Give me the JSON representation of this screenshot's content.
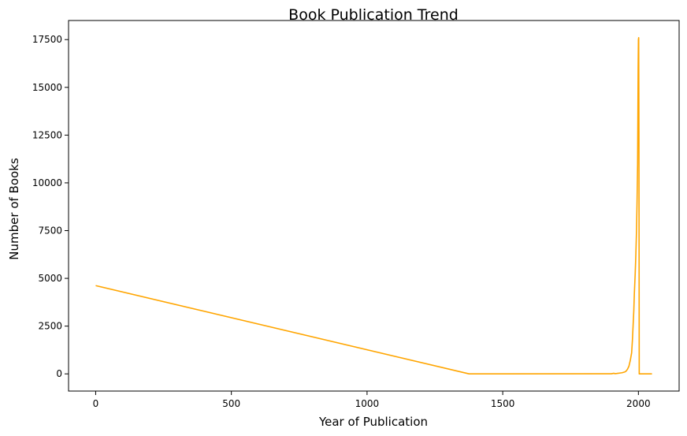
{
  "chart_data": {
    "type": "line",
    "title": "Book Publication Trend",
    "xlabel": "Year of Publication",
    "ylabel": "Number of Books",
    "xlim": [
      -100,
      2150
    ],
    "ylim": [
      -900,
      18500
    ],
    "xticks": [
      0,
      500,
      1000,
      1500,
      2000
    ],
    "yticks": [
      0,
      2500,
      5000,
      7500,
      10000,
      12500,
      15000,
      17500
    ],
    "xtick_labels": [
      "0",
      "500",
      "1000",
      "1500",
      "2000"
    ],
    "ytick_labels": [
      "0",
      "2500",
      "5000",
      "7500",
      "10000",
      "12500",
      "15000",
      "17500"
    ],
    "grid": false,
    "series": [
      {
        "color": "#FFA500",
        "x": [
          0,
          1376,
          1900,
          1910,
          1913,
          1920,
          1930,
          1940,
          1950,
          1955,
          1960,
          1965,
          1970,
          1975,
          1978,
          1980,
          1983,
          1985,
          1988,
          1990,
          1993,
          1995,
          1997,
          1998,
          1999,
          2000,
          2001,
          2002,
          2003,
          2005,
          2010,
          2020,
          2030,
          2037,
          2050
        ],
        "y": [
          4620,
          0,
          5,
          30,
          10,
          20,
          40,
          60,
          100,
          150,
          250,
          400,
          700,
          1100,
          1800,
          2400,
          3300,
          4200,
          5200,
          6000,
          7500,
          9000,
          11000,
          13500,
          16000,
          17500,
          17600,
          12500,
          0,
          0,
          0,
          0,
          0,
          0,
          0
        ]
      }
    ]
  }
}
